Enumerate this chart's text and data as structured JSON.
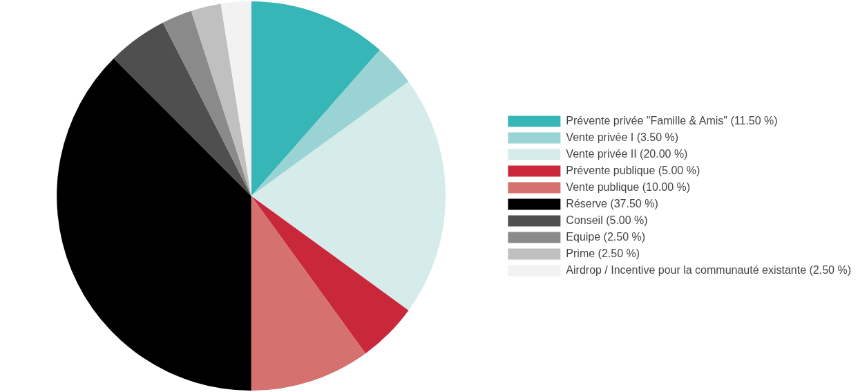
{
  "chart_data": {
    "type": "pie",
    "categories": [
      "Prévente privée \"Famille & Amis\" (11.50 %)",
      "Vente privée I (3.50 %)",
      "Vente privée II (20.00 %)",
      "Prévente publique (5.00 %)",
      "Vente publique (10.00 %)",
      "Réserve (37.50 %)",
      "Conseil (5.00 %)",
      "Equipe (2.50 %)",
      "Prime (2.50 %)",
      "Airdrop / Incentive pour la communauté existante (2.50 %)"
    ],
    "values": [
      11.5,
      3.5,
      20,
      5,
      10,
      37.5,
      5,
      2.5,
      2.5,
      2.5
    ],
    "colors": [
      "#36b6b6",
      "#99d3d4",
      "#d5ecea",
      "#c9283b",
      "#d5716f",
      "#000000",
      "#4f4f4f",
      "#8a8a8a",
      "#c0c0c0",
      "#f2f2f2"
    ],
    "legend": "right"
  }
}
